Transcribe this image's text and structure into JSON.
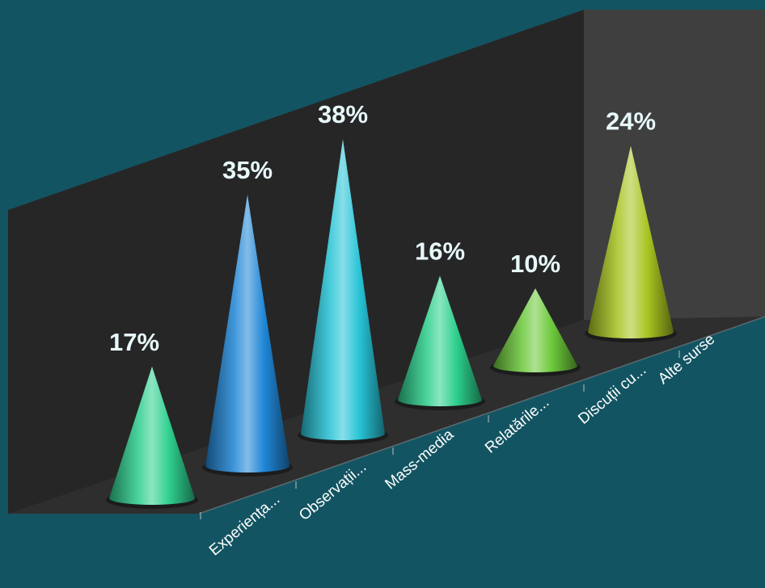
{
  "chart_data": {
    "type": "bar",
    "style": "3d-cone",
    "categories": [
      "",
      "Experiența...",
      "Observații...",
      "Mass-media",
      "Relatările...",
      "Discuții cu...",
      "Alte surse"
    ],
    "values": [
      17,
      35,
      38,
      16,
      10,
      24,
      null
    ],
    "value_labels": [
      "17%",
      "35%",
      "38%",
      "16%",
      "10%",
      "24%",
      ""
    ],
    "colors": [
      "#2ecf8e",
      "#1f86d6",
      "#27c3d6",
      "#2ccf8c",
      "#6cc93a",
      "#a7c420",
      null
    ],
    "grid": false,
    "legend": "none"
  }
}
